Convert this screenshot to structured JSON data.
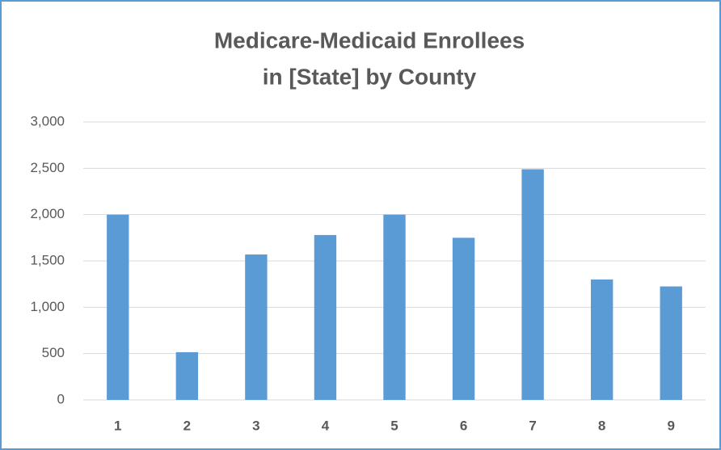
{
  "chart_data": {
    "type": "bar",
    "title": [
      "Medicare-Medicaid Enrollees",
      "in [State] by County"
    ],
    "categories": [
      "1",
      "2",
      "3",
      "4",
      "5",
      "6",
      "7",
      "8",
      "9"
    ],
    "values": [
      2000,
      515,
      1570,
      1780,
      2000,
      1750,
      2490,
      1300,
      1225
    ],
    "color": "#5b9bd5",
    "ylim": [
      0,
      3000
    ],
    "yticks": [
      0,
      500,
      {
        "value": 1000,
        "label": "1,000"
      },
      {
        "value": 1500,
        "label": "1,500"
      },
      {
        "value": 2000,
        "label": "2,000"
      },
      {
        "value": 2500,
        "label": "2,500"
      },
      {
        "value": 3000,
        "label": "3,000"
      }
    ],
    "grid": true
  }
}
